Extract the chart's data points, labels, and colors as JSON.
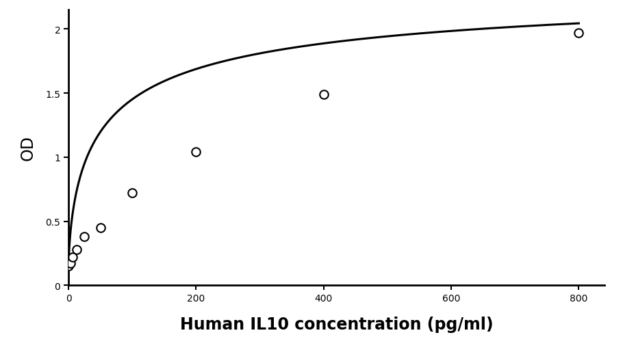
{
  "title": "",
  "xlabel": "Human IL10 concentration (pg/ml)",
  "ylabel": "OD",
  "scatter_x": [
    0,
    3.125,
    6.25,
    12.5,
    25,
    50,
    100,
    200,
    400,
    800
  ],
  "scatter_y": [
    0.15,
    0.17,
    0.22,
    0.28,
    0.38,
    0.45,
    0.72,
    1.04,
    1.49,
    1.97
  ],
  "xlim": [
    0,
    840
  ],
  "ylim": [
    0,
    2.15
  ],
  "xticks": [
    0,
    200,
    400,
    600,
    800
  ],
  "xticklabels": [
    "0",
    "200",
    "400",
    "600",
    "800"
  ],
  "yticks": [
    0,
    0.5,
    1.0,
    1.5,
    2.0
  ],
  "yticklabels": [
    "0",
    "0.5",
    "1",
    "1.5",
    "2"
  ],
  "xlabel_fontsize": 17,
  "ylabel_fontsize": 17,
  "tick_fontsize": 15,
  "marker_size": 9,
  "line_color": "#000000",
  "marker_color": "#ffffff",
  "marker_edge_color": "#000000",
  "line_width": 2.2,
  "xlabel_fontweight": "bold",
  "background_color": "#ffffff"
}
